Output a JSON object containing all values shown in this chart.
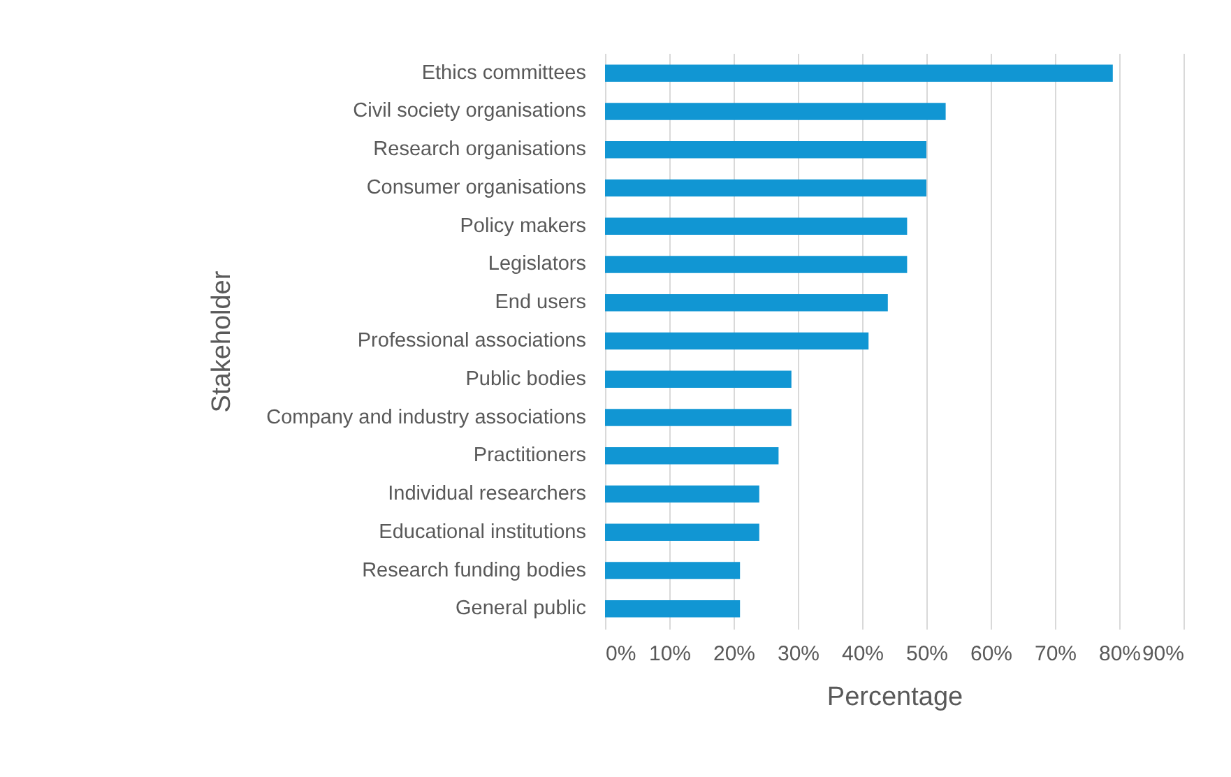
{
  "chart_data": {
    "type": "bar",
    "orientation": "horizontal",
    "xlabel": "Percentage",
    "ylabel": "Stakeholder",
    "categories": [
      "Ethics committees",
      "Civil society organisations",
      "Research organisations",
      "Consumer organisations",
      "Policy makers",
      "Legislators",
      "End users",
      "Professional associations",
      "Public bodies",
      "Company and industry associations",
      "Practitioners",
      "Individual researchers",
      "Educational institutions",
      "Research funding bodies",
      "General public"
    ],
    "values": [
      79,
      53,
      50,
      50,
      47,
      47,
      44,
      41,
      29,
      29,
      27,
      24,
      24,
      21,
      21
    ],
    "color": "#1196d3",
    "xlim": [
      0,
      90
    ],
    "xticks": [
      {
        "value": 0,
        "label": "0%"
      },
      {
        "value": 10,
        "label": "10%"
      },
      {
        "value": 20,
        "label": "20%"
      },
      {
        "value": 30,
        "label": "30%"
      },
      {
        "value": 40,
        "label": "40%"
      },
      {
        "value": 50,
        "label": "50%"
      },
      {
        "value": 60,
        "label": "60%"
      },
      {
        "value": 70,
        "label": "70%"
      },
      {
        "value": 80,
        "label": "80%"
      },
      {
        "value": 90,
        "label": "90%"
      }
    ],
    "grid": "x"
  }
}
